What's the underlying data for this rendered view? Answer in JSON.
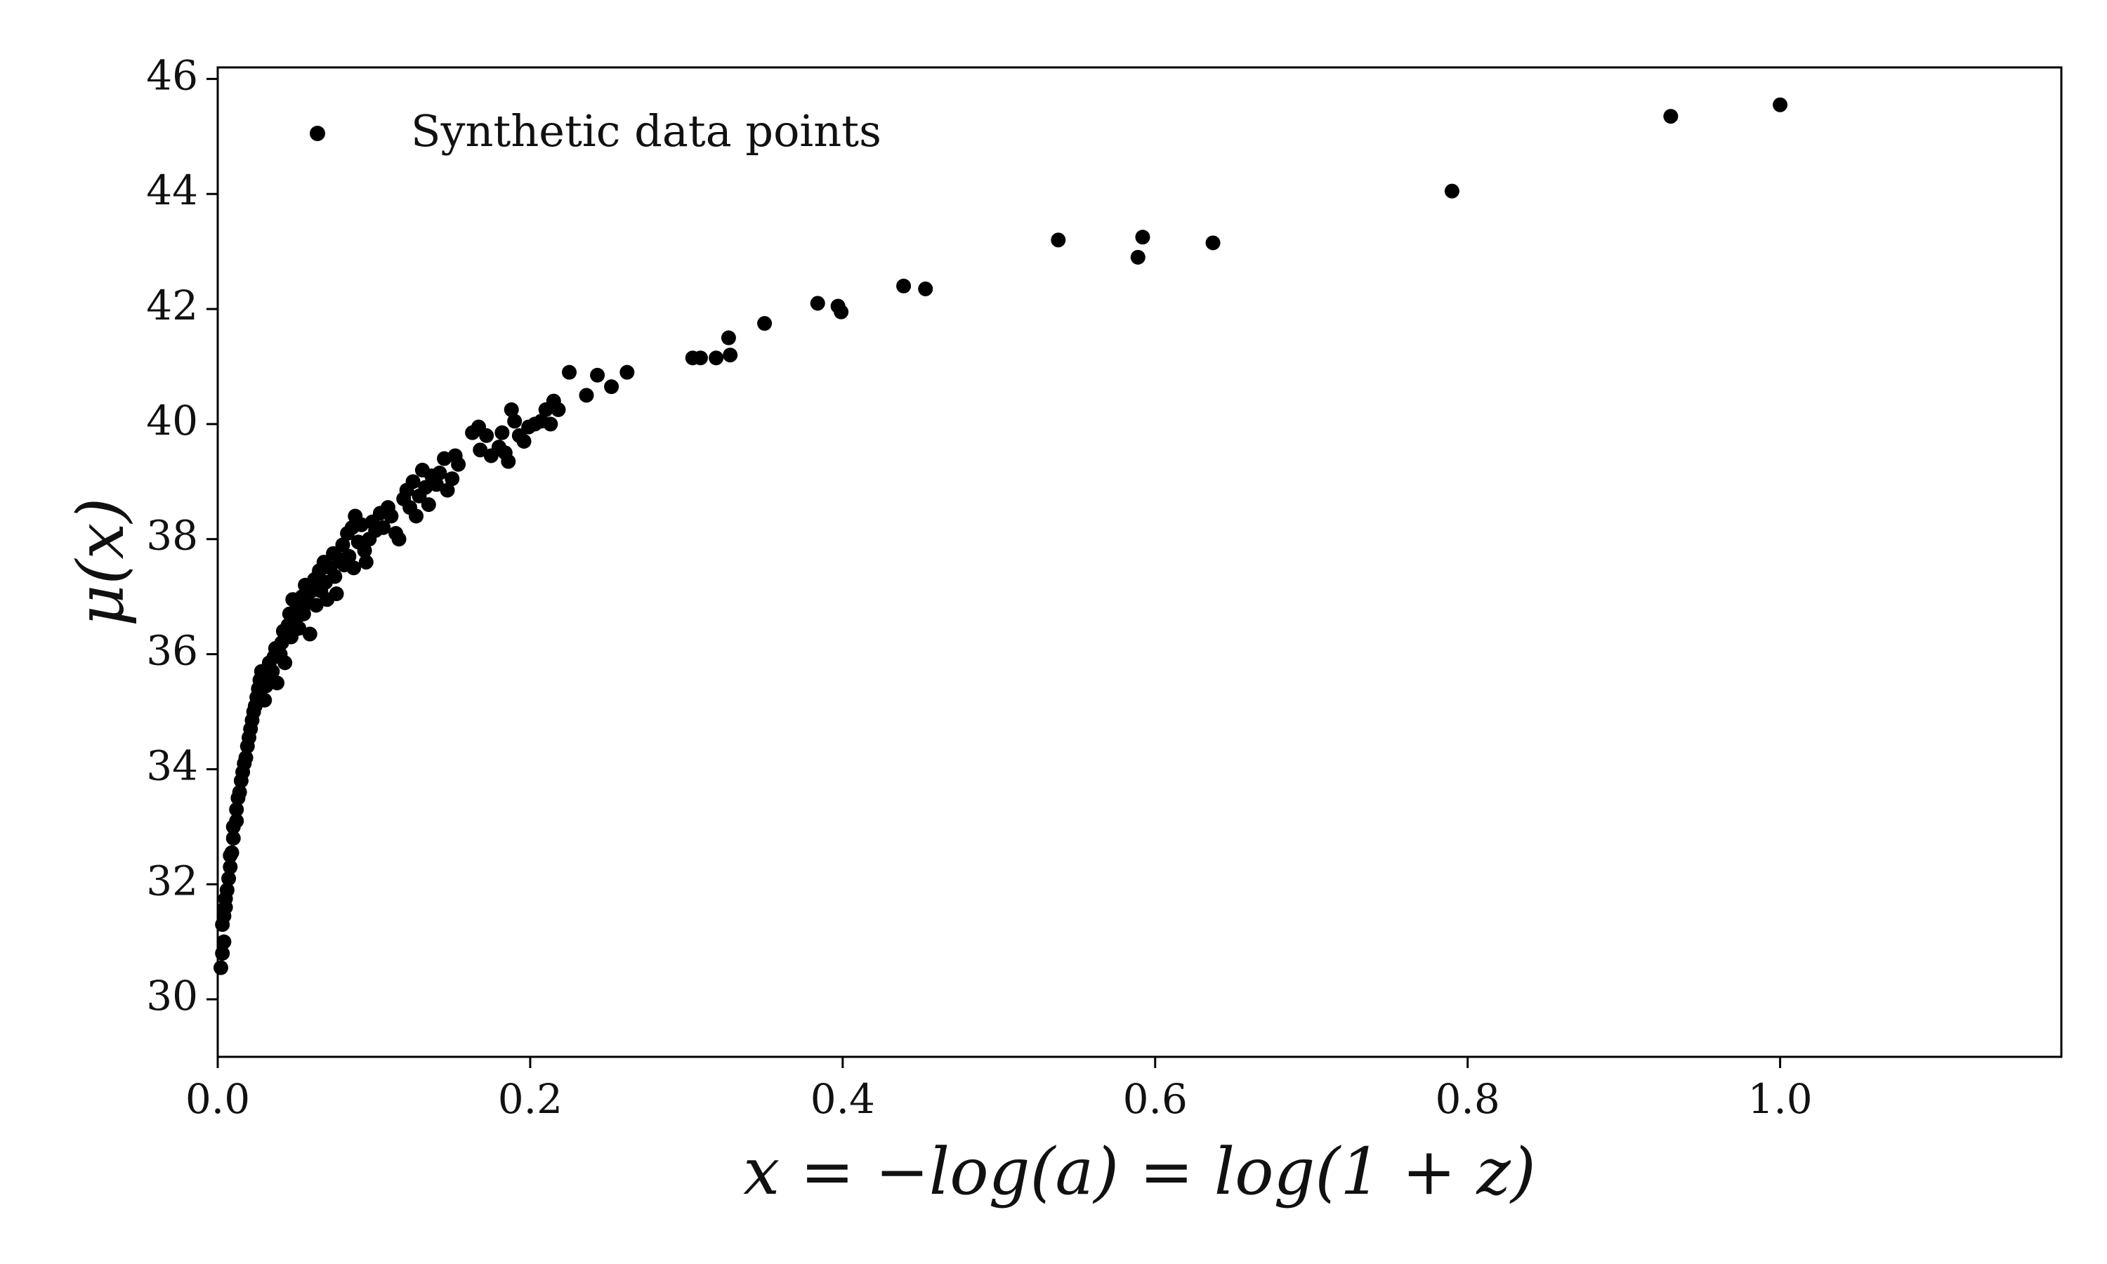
{
  "chart_data": {
    "type": "scatter",
    "title": "",
    "xlabel": "x = −log(a) = log(1 + z)",
    "ylabel": "μ(x)",
    "xlim": [
      0.0,
      1.18
    ],
    "ylim": [
      29.0,
      46.2
    ],
    "xticks": [
      "0.0",
      "0.2",
      "0.4",
      "0.6",
      "0.8",
      "1.0"
    ],
    "yticks": [
      "30",
      "32",
      "34",
      "36",
      "38",
      "40",
      "42",
      "44",
      "46"
    ],
    "grid": false,
    "legend": {
      "position": "top-left",
      "entries": [
        "Synthetic data points"
      ]
    },
    "colors": {
      "points": "#000000",
      "axes": "#000000"
    },
    "series": [
      {
        "name": "Synthetic data points",
        "points": [
          [
            0.002,
            30.55
          ],
          [
            0.003,
            30.8
          ],
          [
            0.004,
            31.0
          ],
          [
            0.003,
            31.3
          ],
          [
            0.004,
            31.45
          ],
          [
            0.005,
            31.6
          ],
          [
            0.005,
            31.75
          ],
          [
            0.006,
            31.9
          ],
          [
            0.007,
            32.1
          ],
          [
            0.008,
            32.3
          ],
          [
            0.008,
            32.5
          ],
          [
            0.009,
            32.55
          ],
          [
            0.01,
            32.8
          ],
          [
            0.01,
            33.0
          ],
          [
            0.012,
            33.1
          ],
          [
            0.012,
            33.3
          ],
          [
            0.013,
            33.5
          ],
          [
            0.014,
            33.6
          ],
          [
            0.015,
            33.8
          ],
          [
            0.016,
            33.95
          ],
          [
            0.017,
            34.1
          ],
          [
            0.018,
            34.2
          ],
          [
            0.019,
            34.4
          ],
          [
            0.02,
            34.55
          ],
          [
            0.021,
            34.7
          ],
          [
            0.022,
            34.85
          ],
          [
            0.023,
            35.0
          ],
          [
            0.024,
            35.1
          ],
          [
            0.025,
            35.25
          ],
          [
            0.026,
            35.4
          ],
          [
            0.027,
            35.55
          ],
          [
            0.028,
            35.7
          ],
          [
            0.03,
            35.2
          ],
          [
            0.031,
            35.45
          ],
          [
            0.032,
            35.6
          ],
          [
            0.033,
            35.85
          ],
          [
            0.035,
            35.7
          ],
          [
            0.036,
            35.95
          ],
          [
            0.037,
            36.1
          ],
          [
            0.038,
            35.5
          ],
          [
            0.04,
            36.0
          ],
          [
            0.041,
            36.2
          ],
          [
            0.042,
            36.4
          ],
          [
            0.043,
            35.85
          ],
          [
            0.045,
            36.5
          ],
          [
            0.046,
            36.7
          ],
          [
            0.047,
            36.3
          ],
          [
            0.048,
            36.95
          ],
          [
            0.05,
            36.6
          ],
          [
            0.051,
            36.8
          ],
          [
            0.052,
            36.45
          ],
          [
            0.054,
            37.0
          ],
          [
            0.055,
            36.7
          ],
          [
            0.056,
            37.2
          ],
          [
            0.058,
            36.9
          ],
          [
            0.059,
            36.35
          ],
          [
            0.06,
            37.1
          ],
          [
            0.062,
            37.3
          ],
          [
            0.063,
            36.85
          ],
          [
            0.065,
            37.45
          ],
          [
            0.066,
            37.1
          ],
          [
            0.068,
            37.6
          ],
          [
            0.069,
            37.25
          ],
          [
            0.07,
            36.95
          ],
          [
            0.072,
            37.5
          ],
          [
            0.074,
            37.75
          ],
          [
            0.075,
            37.35
          ],
          [
            0.076,
            37.05
          ],
          [
            0.078,
            37.65
          ],
          [
            0.08,
            37.9
          ],
          [
            0.081,
            37.55
          ],
          [
            0.083,
            38.1
          ],
          [
            0.084,
            37.7
          ],
          [
            0.086,
            38.2
          ],
          [
            0.087,
            37.5
          ],
          [
            0.088,
            38.4
          ],
          [
            0.09,
            37.95
          ],
          [
            0.092,
            38.25
          ],
          [
            0.094,
            37.8
          ],
          [
            0.095,
            37.6
          ],
          [
            0.097,
            38.0
          ],
          [
            0.099,
            38.3
          ],
          [
            0.101,
            38.15
          ],
          [
            0.104,
            38.45
          ],
          [
            0.106,
            38.2
          ],
          [
            0.109,
            38.55
          ],
          [
            0.111,
            38.4
          ],
          [
            0.114,
            38.1
          ],
          [
            0.116,
            38.0
          ],
          [
            0.119,
            38.7
          ],
          [
            0.121,
            38.85
          ],
          [
            0.123,
            38.55
          ],
          [
            0.125,
            39.0
          ],
          [
            0.127,
            38.4
          ],
          [
            0.129,
            38.75
          ],
          [
            0.131,
            39.2
          ],
          [
            0.133,
            38.9
          ],
          [
            0.135,
            38.6
          ],
          [
            0.137,
            39.1
          ],
          [
            0.14,
            38.95
          ],
          [
            0.142,
            39.15
          ],
          [
            0.145,
            39.4
          ],
          [
            0.147,
            38.85
          ],
          [
            0.15,
            39.05
          ],
          [
            0.152,
            39.45
          ],
          [
            0.154,
            39.3
          ],
          [
            0.163,
            39.85
          ],
          [
            0.167,
            39.95
          ],
          [
            0.168,
            39.55
          ],
          [
            0.172,
            39.8
          ],
          [
            0.175,
            39.45
          ],
          [
            0.18,
            39.6
          ],
          [
            0.182,
            39.85
          ],
          [
            0.184,
            39.5
          ],
          [
            0.186,
            39.35
          ],
          [
            0.188,
            40.25
          ],
          [
            0.19,
            40.05
          ],
          [
            0.193,
            39.8
          ],
          [
            0.196,
            39.7
          ],
          [
            0.199,
            39.95
          ],
          [
            0.203,
            40.0
          ],
          [
            0.207,
            40.05
          ],
          [
            0.21,
            40.25
          ],
          [
            0.213,
            40.0
          ],
          [
            0.215,
            40.4
          ],
          [
            0.218,
            40.25
          ],
          [
            0.225,
            40.9
          ],
          [
            0.236,
            40.5
          ],
          [
            0.243,
            40.85
          ],
          [
            0.252,
            40.65
          ],
          [
            0.262,
            40.9
          ],
          [
            0.304,
            41.15
          ],
          [
            0.309,
            41.15
          ],
          [
            0.319,
            41.15
          ],
          [
            0.327,
            41.5
          ],
          [
            0.328,
            41.2
          ],
          [
            0.35,
            41.75
          ],
          [
            0.384,
            42.1
          ],
          [
            0.397,
            42.05
          ],
          [
            0.399,
            41.95
          ],
          [
            0.439,
            42.4
          ],
          [
            0.453,
            42.35
          ],
          [
            0.538,
            43.2
          ],
          [
            0.589,
            42.9
          ],
          [
            0.592,
            43.25
          ],
          [
            0.637,
            43.15
          ],
          [
            0.79,
            44.05
          ],
          [
            0.93,
            45.35
          ],
          [
            1.0,
            45.55
          ]
        ]
      }
    ]
  }
}
